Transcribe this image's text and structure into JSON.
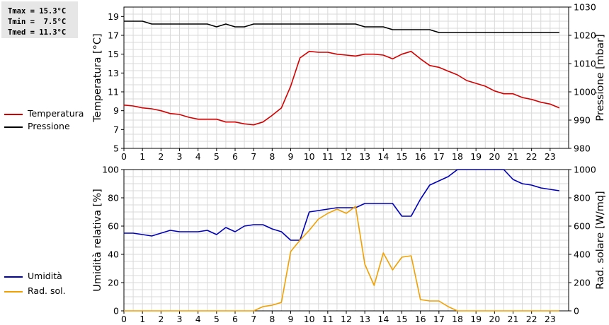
{
  "stats": {
    "tmax": "Tmax = 15.3°C",
    "tmin": "Tmin =  7.5°C",
    "tmed": "Tmed = 11.3°C"
  },
  "legend_top": [
    {
      "label": "Temperatura",
      "color": "#d40000"
    },
    {
      "label": "Pressione",
      "color": "#000000"
    }
  ],
  "legend_bottom": [
    {
      "label": "Umidità",
      "color": "#0000b8"
    },
    {
      "label": "Rad. sol.",
      "color": "#f0a000"
    }
  ],
  "chart_data": [
    {
      "type": "line",
      "x": [
        0,
        0.5,
        1,
        1.5,
        2,
        2.5,
        3,
        3.5,
        4,
        4.5,
        5,
        5.5,
        6,
        6.5,
        7,
        7.5,
        8,
        8.5,
        9,
        9.5,
        10,
        10.5,
        11,
        11.5,
        12,
        12.5,
        13,
        13.5,
        14,
        14.5,
        15,
        15.5,
        16,
        16.5,
        17,
        17.5,
        18,
        18.5,
        19,
        19.5,
        20,
        20.5,
        21,
        21.5,
        22,
        22.5,
        23,
        23.5
      ],
      "xlim": [
        0,
        24
      ],
      "xticks": [
        0,
        1,
        2,
        3,
        4,
        5,
        6,
        7,
        8,
        9,
        10,
        11,
        12,
        13,
        14,
        15,
        16,
        17,
        18,
        19,
        20,
        21,
        22,
        23
      ],
      "ylabel": "Temperatura [°C]",
      "ylim": [
        5,
        20
      ],
      "yticks": [
        5,
        7,
        9,
        11,
        13,
        15,
        17,
        19
      ],
      "y2label": "Pressione [mbar]",
      "y2lim": [
        980,
        1030
      ],
      "y2ticks": [
        980,
        990,
        1000,
        1010,
        1020,
        1030
      ],
      "grid": true,
      "series": [
        {
          "name": "Temperatura",
          "axis": "left",
          "color": "#d40000",
          "values": [
            9.6,
            9.5,
            9.3,
            9.2,
            9.0,
            8.7,
            8.6,
            8.3,
            8.1,
            8.1,
            8.1,
            7.8,
            7.8,
            7.6,
            7.5,
            7.8,
            8.5,
            9.3,
            11.6,
            14.6,
            15.3,
            15.2,
            15.2,
            15.0,
            14.9,
            14.8,
            15.0,
            15.0,
            14.9,
            14.5,
            15.0,
            15.3,
            14.5,
            13.8,
            13.6,
            13.2,
            12.8,
            12.2,
            11.9,
            11.6,
            11.1,
            10.8,
            10.8,
            10.4,
            10.2,
            9.9,
            9.7,
            9.3
          ]
        },
        {
          "name": "Pressione",
          "axis": "right",
          "color": "#000000",
          "values": [
            1025,
            1025,
            1025,
            1024,
            1024,
            1024,
            1024,
            1024,
            1024,
            1024,
            1023,
            1024,
            1023,
            1023,
            1024,
            1024,
            1024,
            1024,
            1024,
            1024,
            1024,
            1024,
            1024,
            1024,
            1024,
            1024,
            1023,
            1023,
            1023,
            1022,
            1022,
            1022,
            1022,
            1022,
            1021,
            1021,
            1021,
            1021,
            1021,
            1021,
            1021,
            1021,
            1021,
            1021,
            1021,
            1021,
            1021,
            1021
          ]
        }
      ]
    },
    {
      "type": "line",
      "x": [
        0,
        0.5,
        1,
        1.5,
        2,
        2.5,
        3,
        3.5,
        4,
        4.5,
        5,
        5.5,
        6,
        6.5,
        7,
        7.5,
        8,
        8.5,
        9,
        9.5,
        10,
        10.5,
        11,
        11.5,
        12,
        12.5,
        13,
        13.5,
        14,
        14.5,
        15,
        15.5,
        16,
        16.5,
        17,
        17.5,
        18,
        18.5,
        19,
        19.5,
        20,
        20.5,
        21,
        21.5,
        22,
        22.5,
        23,
        23.5
      ],
      "xlim": [
        0,
        24
      ],
      "xticks": [
        0,
        1,
        2,
        3,
        4,
        5,
        6,
        7,
        8,
        9,
        10,
        11,
        12,
        13,
        14,
        15,
        16,
        17,
        18,
        19,
        20,
        21,
        22,
        23
      ],
      "ylabel": "Umidità relativa [%]",
      "ylim": [
        0,
        100
      ],
      "yticks": [
        0,
        20,
        40,
        60,
        80,
        100
      ],
      "y2label": "Rad. solare [W/mq]",
      "y2lim": [
        0,
        1000
      ],
      "y2ticks": [
        0,
        200,
        400,
        600,
        800,
        1000
      ],
      "grid": true,
      "series": [
        {
          "name": "Umidità",
          "axis": "left",
          "color": "#0000b8",
          "values": [
            55,
            55,
            54,
            53,
            55,
            57,
            56,
            56,
            56,
            57,
            54,
            59,
            56,
            60,
            61,
            61,
            58,
            56,
            50,
            50,
            70,
            71,
            72,
            73,
            73,
            73,
            76,
            76,
            76,
            76,
            67,
            67,
            79,
            89,
            92,
            95,
            100,
            100,
            100,
            100,
            100,
            100,
            93,
            90,
            89,
            87,
            86,
            85
          ]
        },
        {
          "name": "Rad. sol.",
          "axis": "right",
          "color": "#f0a000",
          "values": [
            0,
            0,
            0,
            0,
            0,
            0,
            0,
            0,
            0,
            0,
            0,
            0,
            0,
            0,
            0,
            30,
            40,
            60,
            420,
            500,
            570,
            650,
            690,
            720,
            690,
            740,
            330,
            180,
            410,
            290,
            380,
            390,
            80,
            70,
            70,
            30,
            0,
            0,
            0,
            0,
            0,
            0,
            0,
            0,
            0,
            0,
            0,
            0
          ]
        }
      ]
    }
  ]
}
